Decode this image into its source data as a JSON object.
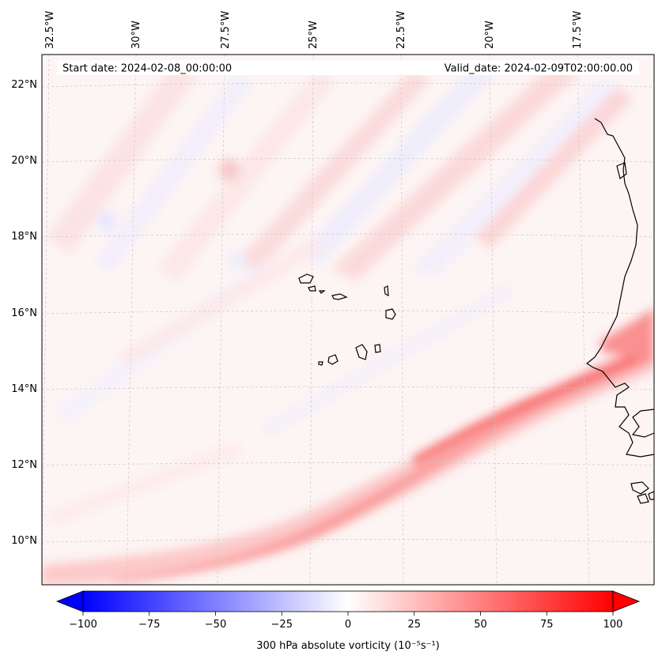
{
  "map": {
    "start_label": "Start date: 2024-02-08_00:00:00",
    "valid_label": "Valid_date: 2024-02-09T02:00:00.00",
    "lon_ticks": [
      "32.5°W",
      "30°W",
      "27.5°W",
      "25°W",
      "22.5°W",
      "20°W",
      "17.5°W"
    ],
    "lat_ticks": [
      "22°N",
      "20°N",
      "18°N",
      "16°N",
      "14°N",
      "12°N",
      "10°N"
    ],
    "colors": {
      "negative": "#0000ff",
      "neutral": "#ffffff",
      "positive": "#ff0000",
      "coastline": "#000000",
      "gridline": "#bbbbbb"
    }
  },
  "colorbar": {
    "label": "300 hPa absolute vorticity (10⁻⁵s⁻¹)",
    "min": -100,
    "max": 100,
    "ticks": [
      "−100",
      "−75",
      "−50",
      "−25",
      "0",
      "25",
      "50",
      "75",
      "100"
    ]
  }
}
